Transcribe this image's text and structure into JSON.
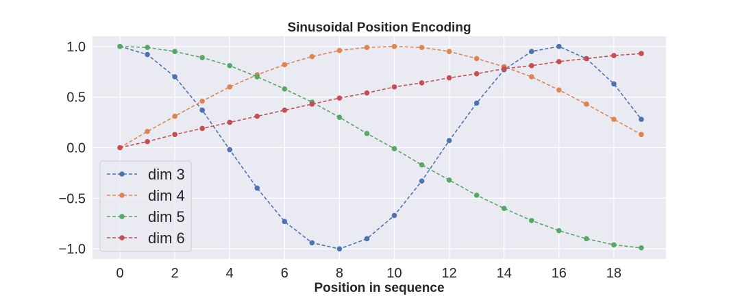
{
  "chart_data": {
    "type": "line",
    "title": "Sinusoidal Position Encoding",
    "xlabel": "Position in sequence",
    "ylabel": "",
    "xlim": [
      -1,
      19.9
    ],
    "ylim": [
      -1.1,
      1.1
    ],
    "xticks": [
      0,
      2,
      4,
      6,
      8,
      10,
      12,
      14,
      16,
      18
    ],
    "xtick_labels": [
      "0",
      "2",
      "4",
      "6",
      "8",
      "10",
      "12",
      "14",
      "16",
      "18"
    ],
    "yticks": [
      1.0,
      0.5,
      0.0,
      -0.5,
      -1.0
    ],
    "ytick_labels": [
      "1.0",
      "0.5",
      "0.0",
      "−0.5",
      "−1.0"
    ],
    "grid": true,
    "legend_position": "lower-left",
    "x": [
      0,
      1,
      2,
      3,
      4,
      5,
      6,
      7,
      8,
      9,
      10,
      11,
      12,
      13,
      14,
      15,
      16,
      17,
      18,
      19
    ],
    "series": [
      {
        "name": "dim 3",
        "color": "#4c72b0",
        "style": "dashed",
        "marker": "circle",
        "values": [
          1.0,
          0.92,
          0.7,
          0.37,
          -0.02,
          -0.4,
          -0.73,
          -0.94,
          -1.0,
          -0.9,
          -0.67,
          -0.33,
          0.07,
          0.44,
          0.77,
          0.95,
          1.0,
          0.88,
          0.63,
          0.28
        ]
      },
      {
        "name": "dim 4",
        "color": "#dd8452",
        "style": "dashed",
        "marker": "circle",
        "values": [
          0.0,
          0.16,
          0.31,
          0.46,
          0.6,
          0.72,
          0.82,
          0.9,
          0.96,
          0.99,
          1.0,
          0.99,
          0.95,
          0.88,
          0.8,
          0.7,
          0.57,
          0.43,
          0.28,
          0.13
        ]
      },
      {
        "name": "dim 5",
        "color": "#55a868",
        "style": "dashed",
        "marker": "circle",
        "values": [
          1.0,
          0.99,
          0.95,
          0.89,
          0.81,
          0.7,
          0.58,
          0.45,
          0.3,
          0.14,
          -0.01,
          -0.17,
          -0.32,
          -0.47,
          -0.6,
          -0.72,
          -0.82,
          -0.9,
          -0.96,
          -0.99
        ]
      },
      {
        "name": "dim 6",
        "color": "#c44e52",
        "style": "dashed",
        "marker": "circle",
        "values": [
          0.0,
          0.06,
          0.13,
          0.19,
          0.25,
          0.31,
          0.37,
          0.43,
          0.49,
          0.54,
          0.6,
          0.64,
          0.69,
          0.73,
          0.78,
          0.81,
          0.85,
          0.88,
          0.91,
          0.93
        ]
      }
    ]
  }
}
